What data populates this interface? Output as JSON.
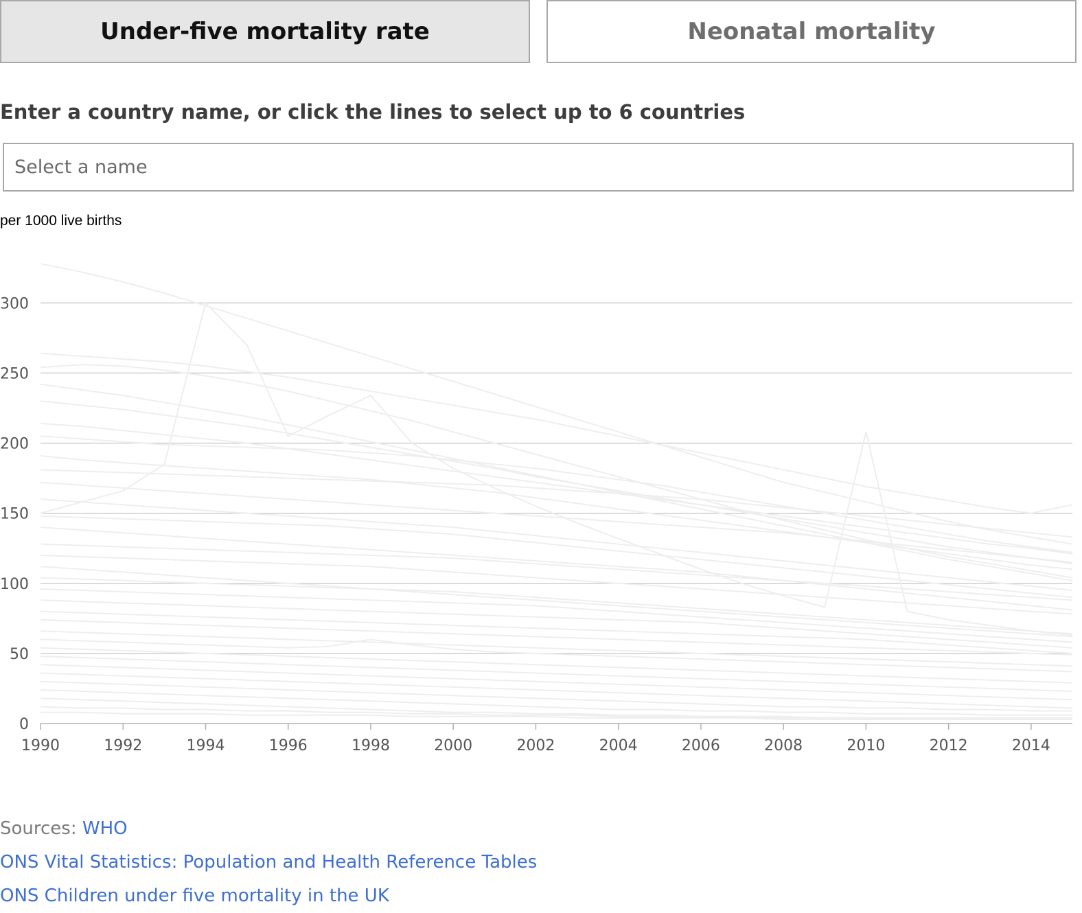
{
  "tabs": [
    {
      "label": "Under-five mortality rate",
      "active": true
    },
    {
      "label": "Neonatal mortality",
      "active": false
    }
  ],
  "instruction": "Enter a country name, or click the lines to select up to 6 countries",
  "search": {
    "placeholder": "Select a name",
    "value": ""
  },
  "sources": {
    "prefix": "Sources:",
    "links": [
      "WHO",
      "ONS Vital Statistics: Population and Health Reference Tables",
      "ONS Children under five mortality in the UK"
    ]
  },
  "chart_data": {
    "type": "line",
    "ylabel": "per 1000 live births",
    "xlim": [
      1990,
      2015
    ],
    "ylim": [
      0,
      330
    ],
    "x_ticks": [
      1990,
      1992,
      1994,
      1996,
      1998,
      2000,
      2002,
      2004,
      2006,
      2008,
      2010,
      2012,
      2014
    ],
    "y_ticks": [
      0,
      50,
      100,
      150,
      200,
      250,
      300
    ],
    "grid": true,
    "line_color": "#eeeeee",
    "x": [
      1990,
      1991,
      1992,
      1993,
      1994,
      1995,
      1996,
      1997,
      1998,
      1999,
      2000,
      2001,
      2002,
      2003,
      2004,
      2005,
      2006,
      2007,
      2008,
      2009,
      2010,
      2011,
      2012,
      2013,
      2014,
      2015
    ],
    "series": [
      {
        "values": [
          328,
          322,
          315,
          307,
          298,
          289,
          280,
          271,
          262,
          253,
          244,
          235,
          226,
          217,
          208,
          199,
          190,
          181,
          172,
          165,
          158,
          151,
          144,
          138,
          133,
          128
        ]
      },
      {
        "values": [
          150,
          158,
          166,
          185,
          300,
          270,
          205,
          220,
          234,
          200,
          182,
          168,
          155,
          143,
          132,
          121,
          110,
          100,
          91,
          83,
          208,
          80,
          74,
          70,
          66,
          63
        ]
      },
      {
        "values": [
          264,
          262,
          260,
          258,
          255,
          251,
          247,
          242,
          237,
          232,
          227,
          222,
          217,
          211,
          205,
          199,
          193,
          187,
          181,
          175,
          169,
          164,
          159,
          154,
          150,
          156
        ]
      },
      {
        "values": [
          254,
          256,
          255,
          252,
          248,
          243,
          237,
          230,
          223,
          216,
          208,
          200,
          192,
          184,
          176,
          168,
          160,
          152,
          145,
          138,
          131,
          125,
          119,
          114,
          109,
          104
        ]
      },
      {
        "values": [
          242,
          238,
          234,
          229,
          224,
          219,
          213,
          207,
          201,
          195,
          189,
          183,
          177,
          171,
          165,
          159,
          153,
          147,
          141,
          135,
          129,
          123,
          117,
          112,
          107,
          102
        ]
      },
      {
        "values": [
          230,
          227,
          224,
          220,
          216,
          212,
          207,
          202,
          197,
          192,
          187,
          182,
          176,
          171,
          166,
          161,
          156,
          151,
          146,
          141,
          136,
          131,
          126,
          122,
          118,
          114
        ]
      },
      {
        "values": [
          214,
          212,
          209,
          206,
          203,
          200,
          196,
          192,
          188,
          184,
          180,
          176,
          172,
          168,
          164,
          160,
          156,
          152,
          148,
          144,
          140,
          136,
          132,
          128,
          125,
          121
        ]
      },
      {
        "values": [
          205,
          203,
          201,
          199,
          198,
          197,
          196,
          195,
          193,
          191,
          188,
          185,
          182,
          178,
          174,
          170,
          165,
          160,
          155,
          150,
          145,
          140,
          135,
          130,
          126,
          122
        ]
      },
      {
        "values": [
          191,
          188,
          186,
          184,
          182,
          180,
          178,
          176,
          174,
          171,
          168,
          165,
          161,
          157,
          153,
          149,
          145,
          141,
          137,
          133,
          129,
          125,
          121,
          117,
          113,
          110
        ]
      },
      {
        "values": [
          181,
          180,
          179,
          178,
          177,
          176,
          175,
          174,
          173,
          172,
          171,
          170,
          168,
          166,
          164,
          162,
          160,
          157,
          154,
          151,
          148,
          145,
          142,
          139,
          136,
          133
        ]
      },
      {
        "values": [
          172,
          170,
          168,
          166,
          164,
          162,
          160,
          158,
          156,
          154,
          152,
          150,
          148,
          146,
          144,
          142,
          140,
          138,
          136,
          133,
          130,
          127,
          124,
          121,
          118,
          115
        ]
      },
      {
        "values": [
          160,
          158,
          156,
          154,
          152,
          150,
          148,
          146,
          144,
          142,
          140,
          137,
          134,
          131,
          128,
          125,
          122,
          119,
          116,
          113,
          110,
          107,
          104,
          101,
          98,
          95
        ]
      },
      {
        "values": [
          148,
          147,
          146,
          145,
          144,
          143,
          142,
          141,
          139,
          137,
          135,
          132,
          129,
          126,
          123,
          120,
          117,
          114,
          111,
          108,
          105,
          102,
          99,
          96,
          93,
          90
        ]
      },
      {
        "values": [
          140,
          138,
          136,
          134,
          132,
          130,
          128,
          126,
          124,
          122,
          120,
          118,
          116,
          114,
          112,
          110,
          108,
          105,
          102,
          99,
          96,
          93,
          90,
          87,
          84,
          81
        ]
      },
      {
        "values": [
          128,
          127,
          126,
          125,
          124,
          123,
          122,
          121,
          120,
          119,
          118,
          116,
          114,
          112,
          110,
          108,
          106,
          104,
          102,
          100,
          98,
          96,
          94,
          92,
          90,
          88
        ]
      },
      {
        "values": [
          120,
          119,
          118,
          117,
          116,
          115,
          114,
          113,
          112,
          110,
          108,
          106,
          104,
          102,
          100,
          98,
          96,
          94,
          92,
          90,
          88,
          86,
          84,
          82,
          80,
          78
        ]
      },
      {
        "values": [
          112,
          110,
          108,
          106,
          104,
          102,
          100,
          98,
          96,
          94,
          92,
          90,
          88,
          86,
          84,
          82,
          80,
          78,
          76,
          74,
          72,
          70,
          68,
          66,
          64,
          62
        ]
      },
      {
        "values": [
          104,
          103,
          102,
          101,
          100,
          99,
          98,
          97,
          96,
          95,
          94,
          92,
          90,
          88,
          86,
          84,
          82,
          80,
          78,
          76,
          74,
          72,
          70,
          68,
          66,
          64
        ]
      },
      {
        "values": [
          96,
          95,
          94,
          93,
          92,
          91,
          90,
          89,
          88,
          87,
          86,
          85,
          84,
          82,
          80,
          78,
          76,
          74,
          72,
          70,
          68,
          66,
          64,
          62,
          60,
          58
        ]
      },
      {
        "values": [
          88,
          87,
          86,
          85,
          84,
          83,
          82,
          81,
          80,
          79,
          78,
          77,
          76,
          75,
          74,
          73,
          72,
          70,
          68,
          66,
          64,
          62,
          60,
          58,
          56,
          54
        ]
      },
      {
        "values": [
          80,
          79,
          78,
          77,
          76,
          75,
          74,
          73,
          72,
          71,
          70,
          69,
          68,
          67,
          66,
          65,
          64,
          63,
          62,
          61,
          60,
          58,
          56,
          54,
          52,
          50
        ]
      },
      {
        "values": [
          74,
          73,
          72,
          71,
          70,
          69,
          68,
          67,
          66,
          65,
          64,
          63,
          62,
          61,
          60,
          59,
          58,
          57,
          56,
          55,
          54,
          53,
          52,
          51,
          50,
          49
        ]
      },
      {
        "values": [
          66,
          65,
          64,
          63,
          62,
          61,
          60,
          59,
          58,
          57,
          56,
          55,
          54,
          53,
          52,
          51,
          50,
          49,
          48,
          47,
          46,
          45,
          44,
          43,
          42,
          41
        ]
      },
      {
        "values": [
          60,
          59,
          58,
          57,
          56,
          55,
          54,
          55,
          60,
          56,
          53,
          51,
          50,
          49,
          48,
          47,
          46,
          45,
          44,
          43,
          42,
          41,
          40,
          39,
          38,
          37
        ]
      },
      {
        "values": [
          54,
          53,
          52,
          51,
          50,
          49,
          48,
          47,
          46,
          45,
          44,
          43,
          42,
          41,
          40,
          39,
          38,
          37,
          36,
          35,
          34,
          33,
          32,
          31,
          30,
          29
        ]
      },
      {
        "values": [
          48,
          47,
          46,
          45,
          44,
          43,
          42,
          41,
          40,
          39,
          38,
          37,
          36,
          35,
          34,
          33,
          32,
          31,
          30,
          29,
          28,
          27,
          26,
          25,
          24,
          23
        ]
      },
      {
        "values": [
          42,
          41,
          40,
          39,
          38,
          37,
          36,
          35,
          34,
          33,
          32,
          31,
          30,
          29,
          28,
          27,
          26,
          25,
          24,
          23,
          22,
          21,
          20,
          19,
          18,
          17
        ]
      },
      {
        "values": [
          36,
          35,
          34,
          33,
          32,
          31,
          30,
          29,
          28,
          27,
          26,
          25,
          24,
          23,
          22,
          21,
          20,
          19,
          18,
          17,
          16,
          15,
          14,
          13,
          12,
          11
        ]
      },
      {
        "values": [
          30,
          29,
          28,
          27,
          26,
          25,
          24,
          23,
          22,
          21,
          20,
          19,
          18,
          17,
          16,
          15,
          14,
          13,
          12,
          12,
          11,
          11,
          10,
          10,
          9,
          9
        ]
      },
      {
        "values": [
          24,
          23,
          22,
          21,
          20,
          19,
          18,
          17,
          16,
          15,
          14,
          13,
          12,
          11,
          10,
          10,
          9,
          9,
          8,
          8,
          7,
          7,
          7,
          6,
          6,
          6
        ]
      },
      {
        "values": [
          18,
          17,
          16,
          15,
          14,
          13,
          12,
          11,
          10,
          9,
          8,
          8,
          7,
          7,
          6,
          6,
          5,
          5,
          5,
          4,
          4,
          4,
          4,
          4,
          4,
          4
        ]
      },
      {
        "values": [
          12,
          11,
          11,
          10,
          10,
          9,
          9,
          8,
          8,
          7,
          7,
          6,
          6,
          6,
          5,
          5,
          5,
          4,
          4,
          4,
          4,
          3,
          3,
          3,
          3,
          3
        ]
      },
      {
        "values": [
          8,
          8,
          7,
          7,
          7,
          6,
          6,
          6,
          6,
          5,
          5,
          5,
          5,
          4,
          4,
          4,
          4,
          4,
          3,
          3,
          3,
          3,
          3,
          3,
          3,
          3
        ]
      }
    ]
  }
}
